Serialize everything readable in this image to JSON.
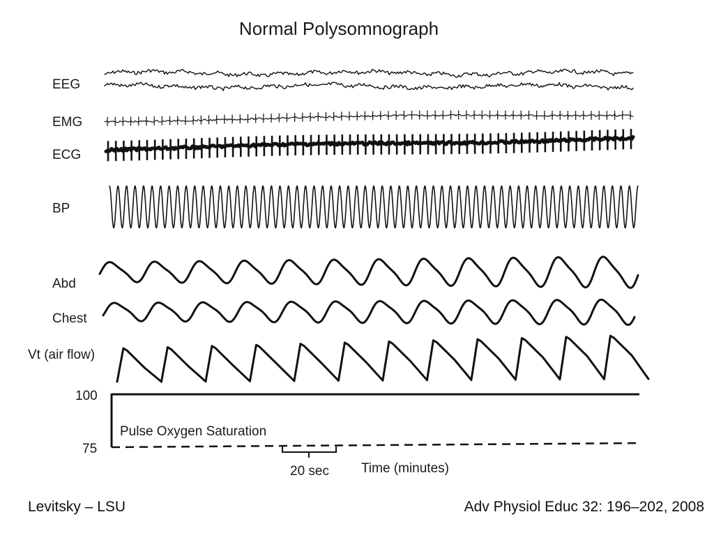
{
  "footer": {
    "left": "Levitsky – LSU",
    "right": "Adv Physiol Educ 32: 196–202, 2008"
  },
  "colors": {
    "ink": "#111111",
    "background": "#ffffff"
  },
  "chart_data": {
    "type": "line",
    "title": "Normal Polysomnograph",
    "xlabel": "Time (minutes)",
    "scale_bar_label": "20 sec",
    "channels": [
      {
        "name": "EEG",
        "cycles": 120,
        "style": "noise-double"
      },
      {
        "name": "EMG",
        "cycles": 68,
        "style": "spikes"
      },
      {
        "name": "ECG",
        "cycles": 68,
        "style": "heavy-spikes"
      },
      {
        "name": "BP",
        "cycles": 62,
        "style": "sine"
      },
      {
        "name": "Abd",
        "cycles": 12,
        "style": "sine"
      },
      {
        "name": "Chest",
        "cycles": 12,
        "style": "sine"
      },
      {
        "name": "Vt (air flow)",
        "cycles": 12,
        "style": "sawtooth"
      }
    ],
    "spo2": {
      "label": "Pulse Oxygen Saturation",
      "ymax_label": "100",
      "ymin_label": "75",
      "ylim": [
        75,
        100
      ],
      "value": 100
    }
  }
}
